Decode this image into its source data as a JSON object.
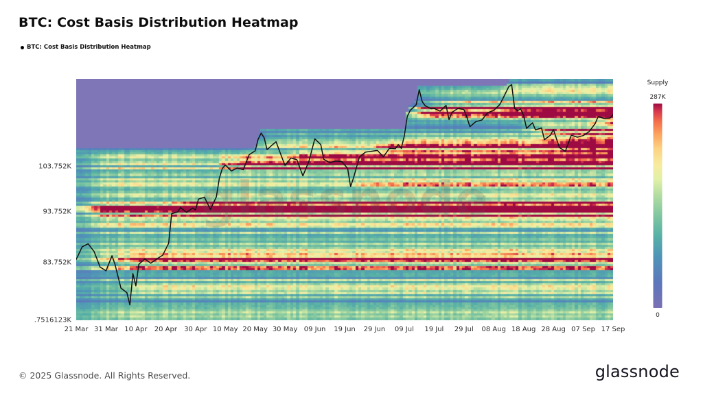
{
  "header": {
    "title": "BTC: Cost Basis Distribution Heatmap"
  },
  "legend": {
    "items": [
      {
        "label": "BTC: Cost Basis Distribution Heatmap",
        "marker_color": "#000000"
      }
    ]
  },
  "watermark": "glassnode",
  "colorbar": {
    "title": "Supply",
    "max_label": "287K",
    "min_label": "0"
  },
  "footer": {
    "copyright": "© 2025 Glassnode. All Rights Reserved.",
    "brand_logo": "glassnode"
  },
  "chart_data": {
    "type": "heatmap",
    "title": "BTC: Cost Basis Distribution Heatmap",
    "x_axis": {
      "tick_labels": [
        "21 Mar",
        "31 Mar",
        "10 Apr",
        "20 Apr",
        "30 Apr",
        "10 May",
        "20 May",
        "30 May",
        "09 Jun",
        "19 Jun",
        "29 Jun",
        "09 Jul",
        "19 Jul",
        "29 Jul",
        "08 Aug",
        "18 Aug",
        "28 Aug",
        "07 Sep",
        "17 Sep"
      ],
      "tick_days": [
        0,
        10,
        20,
        30,
        40,
        50,
        60,
        70,
        80,
        90,
        100,
        110,
        120,
        130,
        140,
        150,
        160,
        170,
        180
      ]
    },
    "y_axis": {
      "scale": "log",
      "min": 73.7516,
      "max": 126.0,
      "unit": "K USD",
      "ticks": [
        {
          "label": "103.752K",
          "price": 103.752
        },
        {
          "label": "93.752K",
          "price": 93.752
        },
        {
          "label": "83.752K",
          "price": 83.752
        },
        {
          "label": ".7516123K",
          "price": 73.7516
        }
      ]
    },
    "supply_range": {
      "min": 0,
      "max": 287000,
      "max_label": "287K",
      "min_label": "0"
    },
    "days": 181,
    "initial_max_price": 106.8,
    "no_data_color": "#7f76b8",
    "base_density": 0.4,
    "density_scale": 1.85,
    "price_bins": 112,
    "colormap": [
      [
        0.0,
        "#7a70b4"
      ],
      [
        0.12,
        "#5d76bb"
      ],
      [
        0.25,
        "#4f94b8"
      ],
      [
        0.35,
        "#57b0a6"
      ],
      [
        0.45,
        "#7fc6a0"
      ],
      [
        0.55,
        "#b2dca2"
      ],
      [
        0.63,
        "#e2f0a8"
      ],
      [
        0.7,
        "#f7eb9f"
      ],
      [
        0.78,
        "#fdd283"
      ],
      [
        0.85,
        "#fca35f"
      ],
      [
        0.91,
        "#f4704b"
      ],
      [
        0.96,
        "#d93a4e"
      ],
      [
        1.0,
        "#9e0b43"
      ]
    ],
    "price_line": {
      "color": "#111111",
      "series": [
        [
          0,
          84.4
        ],
        [
          2,
          86.8
        ],
        [
          4,
          87.4
        ],
        [
          6,
          85.9
        ],
        [
          8,
          83.0
        ],
        [
          10,
          82.3
        ],
        [
          12,
          85.1
        ],
        [
          13,
          83.5
        ],
        [
          15,
          79.2
        ],
        [
          17,
          78.4
        ],
        [
          18,
          76.3
        ],
        [
          19,
          81.8
        ],
        [
          20,
          79.6
        ],
        [
          21,
          83.5
        ],
        [
          23,
          84.5
        ],
        [
          25,
          83.7
        ],
        [
          27,
          84.5
        ],
        [
          29,
          85.2
        ],
        [
          31,
          87.5
        ],
        [
          32,
          93.4
        ],
        [
          34,
          93.8
        ],
        [
          35,
          94.7
        ],
        [
          37,
          93.7
        ],
        [
          39,
          94.6
        ],
        [
          40,
          94.2
        ],
        [
          41,
          96.5
        ],
        [
          43,
          96.9
        ],
        [
          45,
          94.3
        ],
        [
          47,
          97.0
        ],
        [
          48,
          101.1
        ],
        [
          49,
          103.3
        ],
        [
          50,
          104.1
        ],
        [
          52,
          102.7
        ],
        [
          54,
          103.4
        ],
        [
          56,
          103.0
        ],
        [
          58,
          106.5
        ],
        [
          60,
          107.4
        ],
        [
          61,
          110.2
        ],
        [
          62,
          111.7
        ],
        [
          63,
          110.6
        ],
        [
          64,
          107.7
        ],
        [
          66,
          109.0
        ],
        [
          67,
          109.6
        ],
        [
          69,
          105.8
        ],
        [
          70,
          104.0
        ],
        [
          72,
          105.7
        ],
        [
          74,
          105.3
        ],
        [
          76,
          101.6
        ],
        [
          78,
          104.9
        ],
        [
          80,
          110.3
        ],
        [
          82,
          108.9
        ],
        [
          83,
          105.4
        ],
        [
          85,
          104.6
        ],
        [
          87,
          105.0
        ],
        [
          89,
          104.9
        ],
        [
          91,
          103.3
        ],
        [
          92,
          99.2
        ],
        [
          93,
          101.2
        ],
        [
          95,
          106.0
        ],
        [
          97,
          107.1
        ],
        [
          99,
          107.3
        ],
        [
          101,
          107.5
        ],
        [
          103,
          106.0
        ],
        [
          105,
          108.0
        ],
        [
          107,
          107.9
        ],
        [
          108,
          108.9
        ],
        [
          109,
          108.0
        ],
        [
          110,
          111.0
        ],
        [
          111,
          115.9
        ],
        [
          112,
          117.5
        ],
        [
          114,
          119.0
        ],
        [
          115,
          123.0
        ],
        [
          116,
          119.8
        ],
        [
          117,
          118.7
        ],
        [
          119,
          117.9
        ],
        [
          120,
          118.0
        ],
        [
          122,
          117.3
        ],
        [
          124,
          118.8
        ],
        [
          125,
          115.1
        ],
        [
          126,
          117.0
        ],
        [
          128,
          118.0
        ],
        [
          130,
          117.7
        ],
        [
          131,
          115.7
        ],
        [
          132,
          113.3
        ],
        [
          134,
          114.6
        ],
        [
          136,
          115.0
        ],
        [
          138,
          116.9
        ],
        [
          140,
          117.5
        ],
        [
          142,
          119.0
        ],
        [
          143,
          120.5
        ],
        [
          145,
          123.8
        ],
        [
          146,
          124.4
        ],
        [
          147,
          118.0
        ],
        [
          148,
          117.4
        ],
        [
          149,
          117.9
        ],
        [
          150,
          116.2
        ],
        [
          151,
          112.9
        ],
        [
          153,
          114.3
        ],
        [
          154,
          112.5
        ],
        [
          156,
          113.0
        ],
        [
          157,
          110.1
        ],
        [
          159,
          111.2
        ],
        [
          160,
          112.6
        ],
        [
          162,
          108.2
        ],
        [
          164,
          107.3
        ],
        [
          166,
          111.2
        ],
        [
          168,
          110.7
        ],
        [
          170,
          111.1
        ],
        [
          172,
          112.1
        ],
        [
          174,
          114.1
        ],
        [
          175,
          115.9
        ],
        [
          177,
          115.4
        ],
        [
          179,
          115.5
        ],
        [
          180,
          116.4
        ]
      ]
    },
    "supply_bands": [
      [
        74.8,
        0.7,
        0,
        0.35
      ],
      [
        76.5,
        0.6,
        0,
        0.3
      ],
      [
        78.5,
        0.7,
        0,
        0.35
      ],
      [
        80.5,
        0.6,
        0,
        0.3
      ],
      [
        82.5,
        0.8,
        0,
        0.55
      ],
      [
        84.3,
        0.8,
        0,
        0.6
      ],
      [
        86.0,
        0.7,
        0,
        0.45
      ],
      [
        88.0,
        0.8,
        0,
        0.4
      ],
      [
        90.0,
        0.7,
        0,
        0.4
      ],
      [
        91.5,
        0.6,
        0,
        0.45
      ],
      [
        93.6,
        0.9,
        0,
        1.1
      ],
      [
        95.3,
        0.7,
        0,
        0.85
      ],
      [
        96.8,
        0.6,
        0,
        0.6
      ],
      [
        98.3,
        0.7,
        0,
        0.55
      ],
      [
        100.0,
        0.7,
        0,
        0.5
      ],
      [
        101.8,
        0.7,
        0,
        0.5
      ],
      [
        103.6,
        0.8,
        0,
        0.7
      ],
      [
        105.2,
        0.7,
        0,
        0.55
      ],
      [
        106.3,
        0.6,
        0,
        0.4
      ],
      [
        84.0,
        1.2,
        14,
        0.5
      ],
      [
        79.0,
        1.0,
        16,
        0.35
      ],
      [
        94.8,
        1.2,
        32,
        0.9
      ],
      [
        104.3,
        1.1,
        48,
        0.95
      ],
      [
        109.0,
        1.0,
        58,
        0.6
      ],
      [
        111.0,
        0.8,
        60,
        0.5
      ],
      [
        106.0,
        1.2,
        72,
        0.6
      ],
      [
        99.5,
        0.8,
        92,
        0.35
      ],
      [
        108.3,
        0.9,
        100,
        0.6
      ],
      [
        110.5,
        0.8,
        108,
        0.5
      ],
      [
        116.8,
        1.0,
        111,
        1.1
      ],
      [
        118.3,
        0.9,
        114,
        1.0
      ],
      [
        119.8,
        0.8,
        118,
        0.5
      ],
      [
        122.5,
        1.0,
        115,
        0.3
      ],
      [
        123.5,
        0.8,
        142,
        0.45
      ],
      [
        117.5,
        1.1,
        145,
        0.6
      ],
      [
        113.0,
        1.0,
        149,
        0.65
      ],
      [
        111.5,
        0.9,
        153,
        0.55
      ],
      [
        109.0,
        0.9,
        158,
        0.5
      ],
      [
        107.6,
        0.7,
        162,
        0.4
      ],
      [
        111.0,
        0.8,
        166,
        0.45
      ],
      [
        114.5,
        0.9,
        172,
        0.5
      ],
      [
        116.0,
        0.7,
        176,
        0.4
      ]
    ]
  }
}
